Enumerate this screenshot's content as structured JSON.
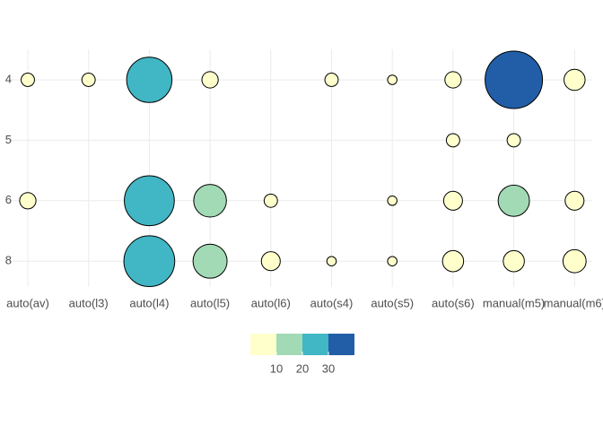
{
  "chart_data": {
    "type": "balloon",
    "x_categories": [
      "auto(av)",
      "auto(l3)",
      "auto(l4)",
      "auto(l5)",
      "auto(l6)",
      "auto(s4)",
      "auto(s5)",
      "auto(s6)",
      "manual(m5)",
      "manual(m6)"
    ],
    "y_categories": [
      "4",
      "5",
      "6",
      "8"
    ],
    "counts": [
      [
        2,
        2,
        23,
        3,
        null,
        2,
        1,
        3,
        37,
        5
      ],
      [
        null,
        null,
        null,
        null,
        null,
        null,
        null,
        2,
        2,
        null
      ],
      [
        3,
        null,
        28,
        12,
        2,
        null,
        1,
        4,
        11,
        4
      ],
      [
        null,
        null,
        29,
        13,
        4,
        1,
        1,
        5,
        5,
        6
      ]
    ],
    "color_breaks": [
      10,
      20,
      30
    ],
    "colors": [
      "#ffffcc",
      "#a1dab4",
      "#41b6c4",
      "#225ea8"
    ],
    "grid": true
  }
}
